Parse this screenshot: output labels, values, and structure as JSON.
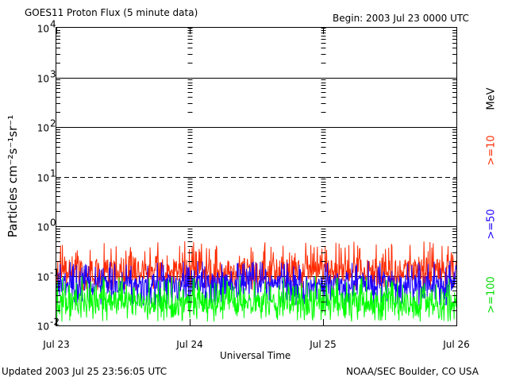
{
  "header": {
    "title": "GOES11 Proton Flux (5 minute data)",
    "begin": "Begin: 2003 Jul 23 0000 UTC"
  },
  "footer": {
    "updated": "Updated 2003 Jul 25 23:56:05 UTC",
    "credit": "NOAA/SEC Boulder, CO USA"
  },
  "chart_data": {
    "type": "line",
    "title": "GOES11 Proton Flux (5 minute data)",
    "xlabel": "Universal Time",
    "ylabel": "Particles cm⁻²s⁻¹sr⁻¹",
    "y_scale": "log",
    "ylim": [
      0.01,
      10000
    ],
    "y_ticks": [
      {
        "base": "10",
        "exp": "4"
      },
      {
        "base": "10",
        "exp": "3"
      },
      {
        "base": "10",
        "exp": "2"
      },
      {
        "base": "10",
        "exp": "1"
      },
      {
        "base": "10",
        "exp": "0"
      },
      {
        "base": "10",
        "exp": "-1"
      },
      {
        "base": "10",
        "exp": "-2"
      }
    ],
    "x_ticks": [
      "Jul 23",
      "Jul 24",
      "Jul 25",
      "Jul 26"
    ],
    "xlim": [
      "2003-07-23",
      "2003-07-26"
    ],
    "grid": "solid horizontal lines at decades, dashed at 10^1",
    "right_labels": {
      "unit": "MeV",
      "ch1": ">=10",
      "ch2": ">=50",
      "ch3": ">=100"
    },
    "series": [
      {
        "name": ">=10",
        "color": "#ff2a00",
        "typical": 0.13,
        "range": [
          0.05,
          0.5
        ]
      },
      {
        "name": ">=50",
        "color": "#1a00ff",
        "typical": 0.07,
        "range": [
          0.025,
          0.2
        ]
      },
      {
        "name": ">=100",
        "color": "#00ff00",
        "typical": 0.03,
        "range": [
          0.012,
          0.1
        ]
      }
    ]
  }
}
